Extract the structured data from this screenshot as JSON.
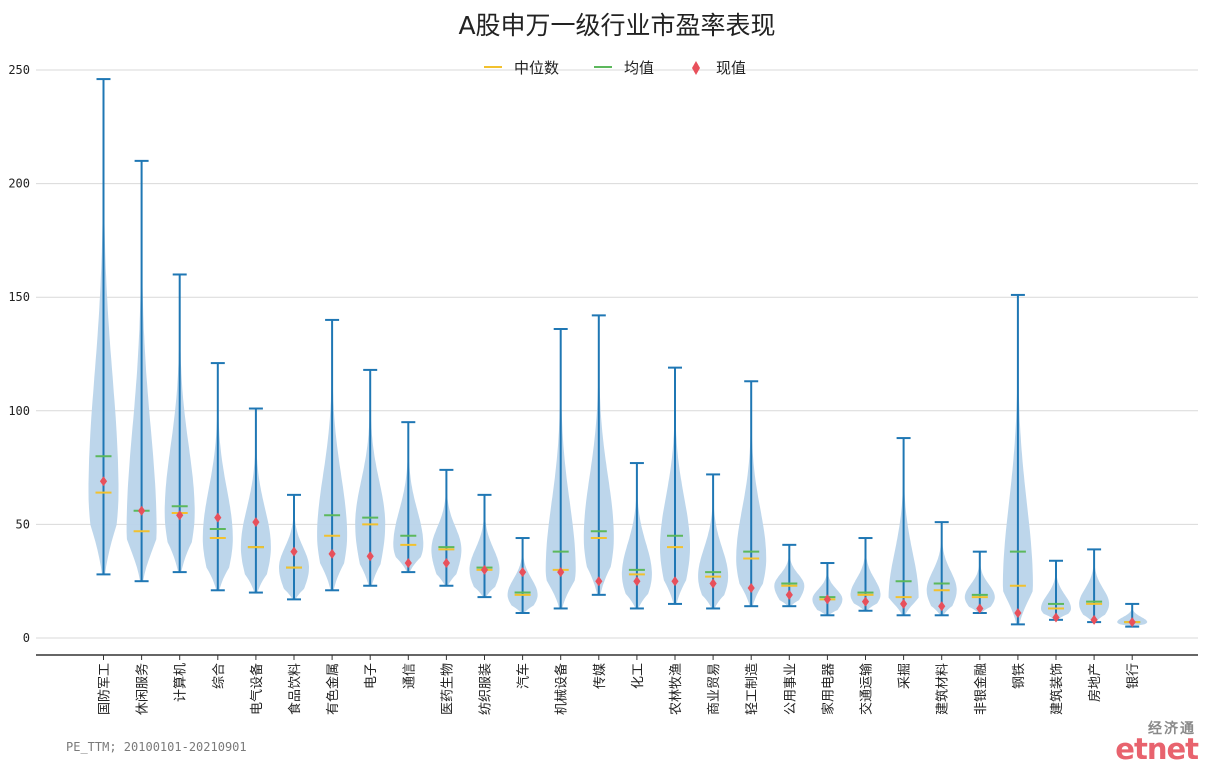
{
  "chart_data": {
    "type": "violin",
    "title": "A股申万一级行业市盈率表现",
    "ylim": [
      -7,
      252
    ],
    "yticks": [
      0,
      50,
      100,
      150,
      200,
      250
    ],
    "grid": true,
    "legend_position": "top-center",
    "legend": [
      {
        "label": "中位数",
        "key": "median",
        "symbol": "line"
      },
      {
        "label": "均值",
        "key": "mean",
        "symbol": "line"
      },
      {
        "label": "现值",
        "key": "current",
        "symbol": "diamond"
      }
    ],
    "colors": {
      "violin": "#b9d4ea",
      "whisker": "#1f77b4",
      "median": "#f2c12e",
      "mean": "#5cb85c",
      "current": "#e8505b",
      "grid": "#d9d9d9"
    },
    "categories": [
      "国防军工",
      "休闲服务",
      "计算机",
      "综合",
      "电气设备",
      "食品饮料",
      "有色金属",
      "电子",
      "通信",
      "医药生物",
      "纺织服装",
      "汽车",
      "机械设备",
      "传媒",
      "化工",
      "农林牧渔",
      "商业贸易",
      "轻工制造",
      "公用事业",
      "家用电器",
      "交通运输",
      "采掘",
      "建筑材料",
      "非银金融",
      "钢铁",
      "建筑装饰",
      "房地产",
      "银行"
    ],
    "series": [
      {
        "name": "国防军工",
        "min": 28,
        "max": 246,
        "median": 64,
        "mean": 80,
        "current": 69
      },
      {
        "name": "休闲服务",
        "min": 25,
        "max": 210,
        "median": 47,
        "mean": 56,
        "current": 56
      },
      {
        "name": "计算机",
        "min": 29,
        "max": 160,
        "median": 55,
        "mean": 58,
        "current": 54
      },
      {
        "name": "综合",
        "min": 21,
        "max": 121,
        "median": 44,
        "mean": 48,
        "current": 53
      },
      {
        "name": "电气设备",
        "min": 20,
        "max": 101,
        "median": 40,
        "mean": 40,
        "current": 51
      },
      {
        "name": "食品饮料",
        "min": 17,
        "max": 63,
        "median": 31,
        "mean": 31,
        "current": 38
      },
      {
        "name": "有色金属",
        "min": 21,
        "max": 140,
        "median": 45,
        "mean": 54,
        "current": 37
      },
      {
        "name": "电子",
        "min": 23,
        "max": 118,
        "median": 50,
        "mean": 53,
        "current": 36
      },
      {
        "name": "通信",
        "min": 29,
        "max": 95,
        "median": 41,
        "mean": 45,
        "current": 33
      },
      {
        "name": "医药生物",
        "min": 23,
        "max": 74,
        "median": 39,
        "mean": 40,
        "current": 33
      },
      {
        "name": "纺织服装",
        "min": 18,
        "max": 63,
        "median": 30,
        "mean": 31,
        "current": 30
      },
      {
        "name": "汽车",
        "min": 11,
        "max": 44,
        "median": 19,
        "mean": 20,
        "current": 29
      },
      {
        "name": "机械设备",
        "min": 13,
        "max": 136,
        "median": 30,
        "mean": 38,
        "current": 29
      },
      {
        "name": "传媒",
        "min": 19,
        "max": 142,
        "median": 44,
        "mean": 47,
        "current": 25
      },
      {
        "name": "化工",
        "min": 13,
        "max": 77,
        "median": 28,
        "mean": 30,
        "current": 25
      },
      {
        "name": "农林牧渔",
        "min": 15,
        "max": 119,
        "median": 40,
        "mean": 45,
        "current": 25
      },
      {
        "name": "商业贸易",
        "min": 13,
        "max": 72,
        "median": 27,
        "mean": 29,
        "current": 24
      },
      {
        "name": "轻工制造",
        "min": 14,
        "max": 113,
        "median": 35,
        "mean": 38,
        "current": 22
      },
      {
        "name": "公用事业",
        "min": 14,
        "max": 41,
        "median": 23,
        "mean": 24,
        "current": 19
      },
      {
        "name": "家用电器",
        "min": 10,
        "max": 33,
        "median": 17,
        "mean": 18,
        "current": 17
      },
      {
        "name": "交通运输",
        "min": 12,
        "max": 44,
        "median": 19,
        "mean": 20,
        "current": 16
      },
      {
        "name": "采掘",
        "min": 10,
        "max": 88,
        "median": 18,
        "mean": 25,
        "current": 15
      },
      {
        "name": "建筑材料",
        "min": 10,
        "max": 51,
        "median": 21,
        "mean": 24,
        "current": 14
      },
      {
        "name": "非银金融",
        "min": 11,
        "max": 38,
        "median": 18,
        "mean": 19,
        "current": 13
      },
      {
        "name": "钢铁",
        "min": 6,
        "max": 151,
        "median": 23,
        "mean": 38,
        "current": 11
      },
      {
        "name": "建筑装饰",
        "min": 8,
        "max": 34,
        "median": 13,
        "mean": 15,
        "current": 9
      },
      {
        "name": "房地产",
        "min": 7,
        "max": 39,
        "median": 15,
        "mean": 16,
        "current": 8
      },
      {
        "name": "银行",
        "min": 5,
        "max": 15,
        "median": 7,
        "mean": 7,
        "current": 7
      }
    ]
  },
  "footnote": "PE_TTM; 20100101-20210901",
  "brand": {
    "cn": "经济通",
    "logo": "etnet"
  }
}
